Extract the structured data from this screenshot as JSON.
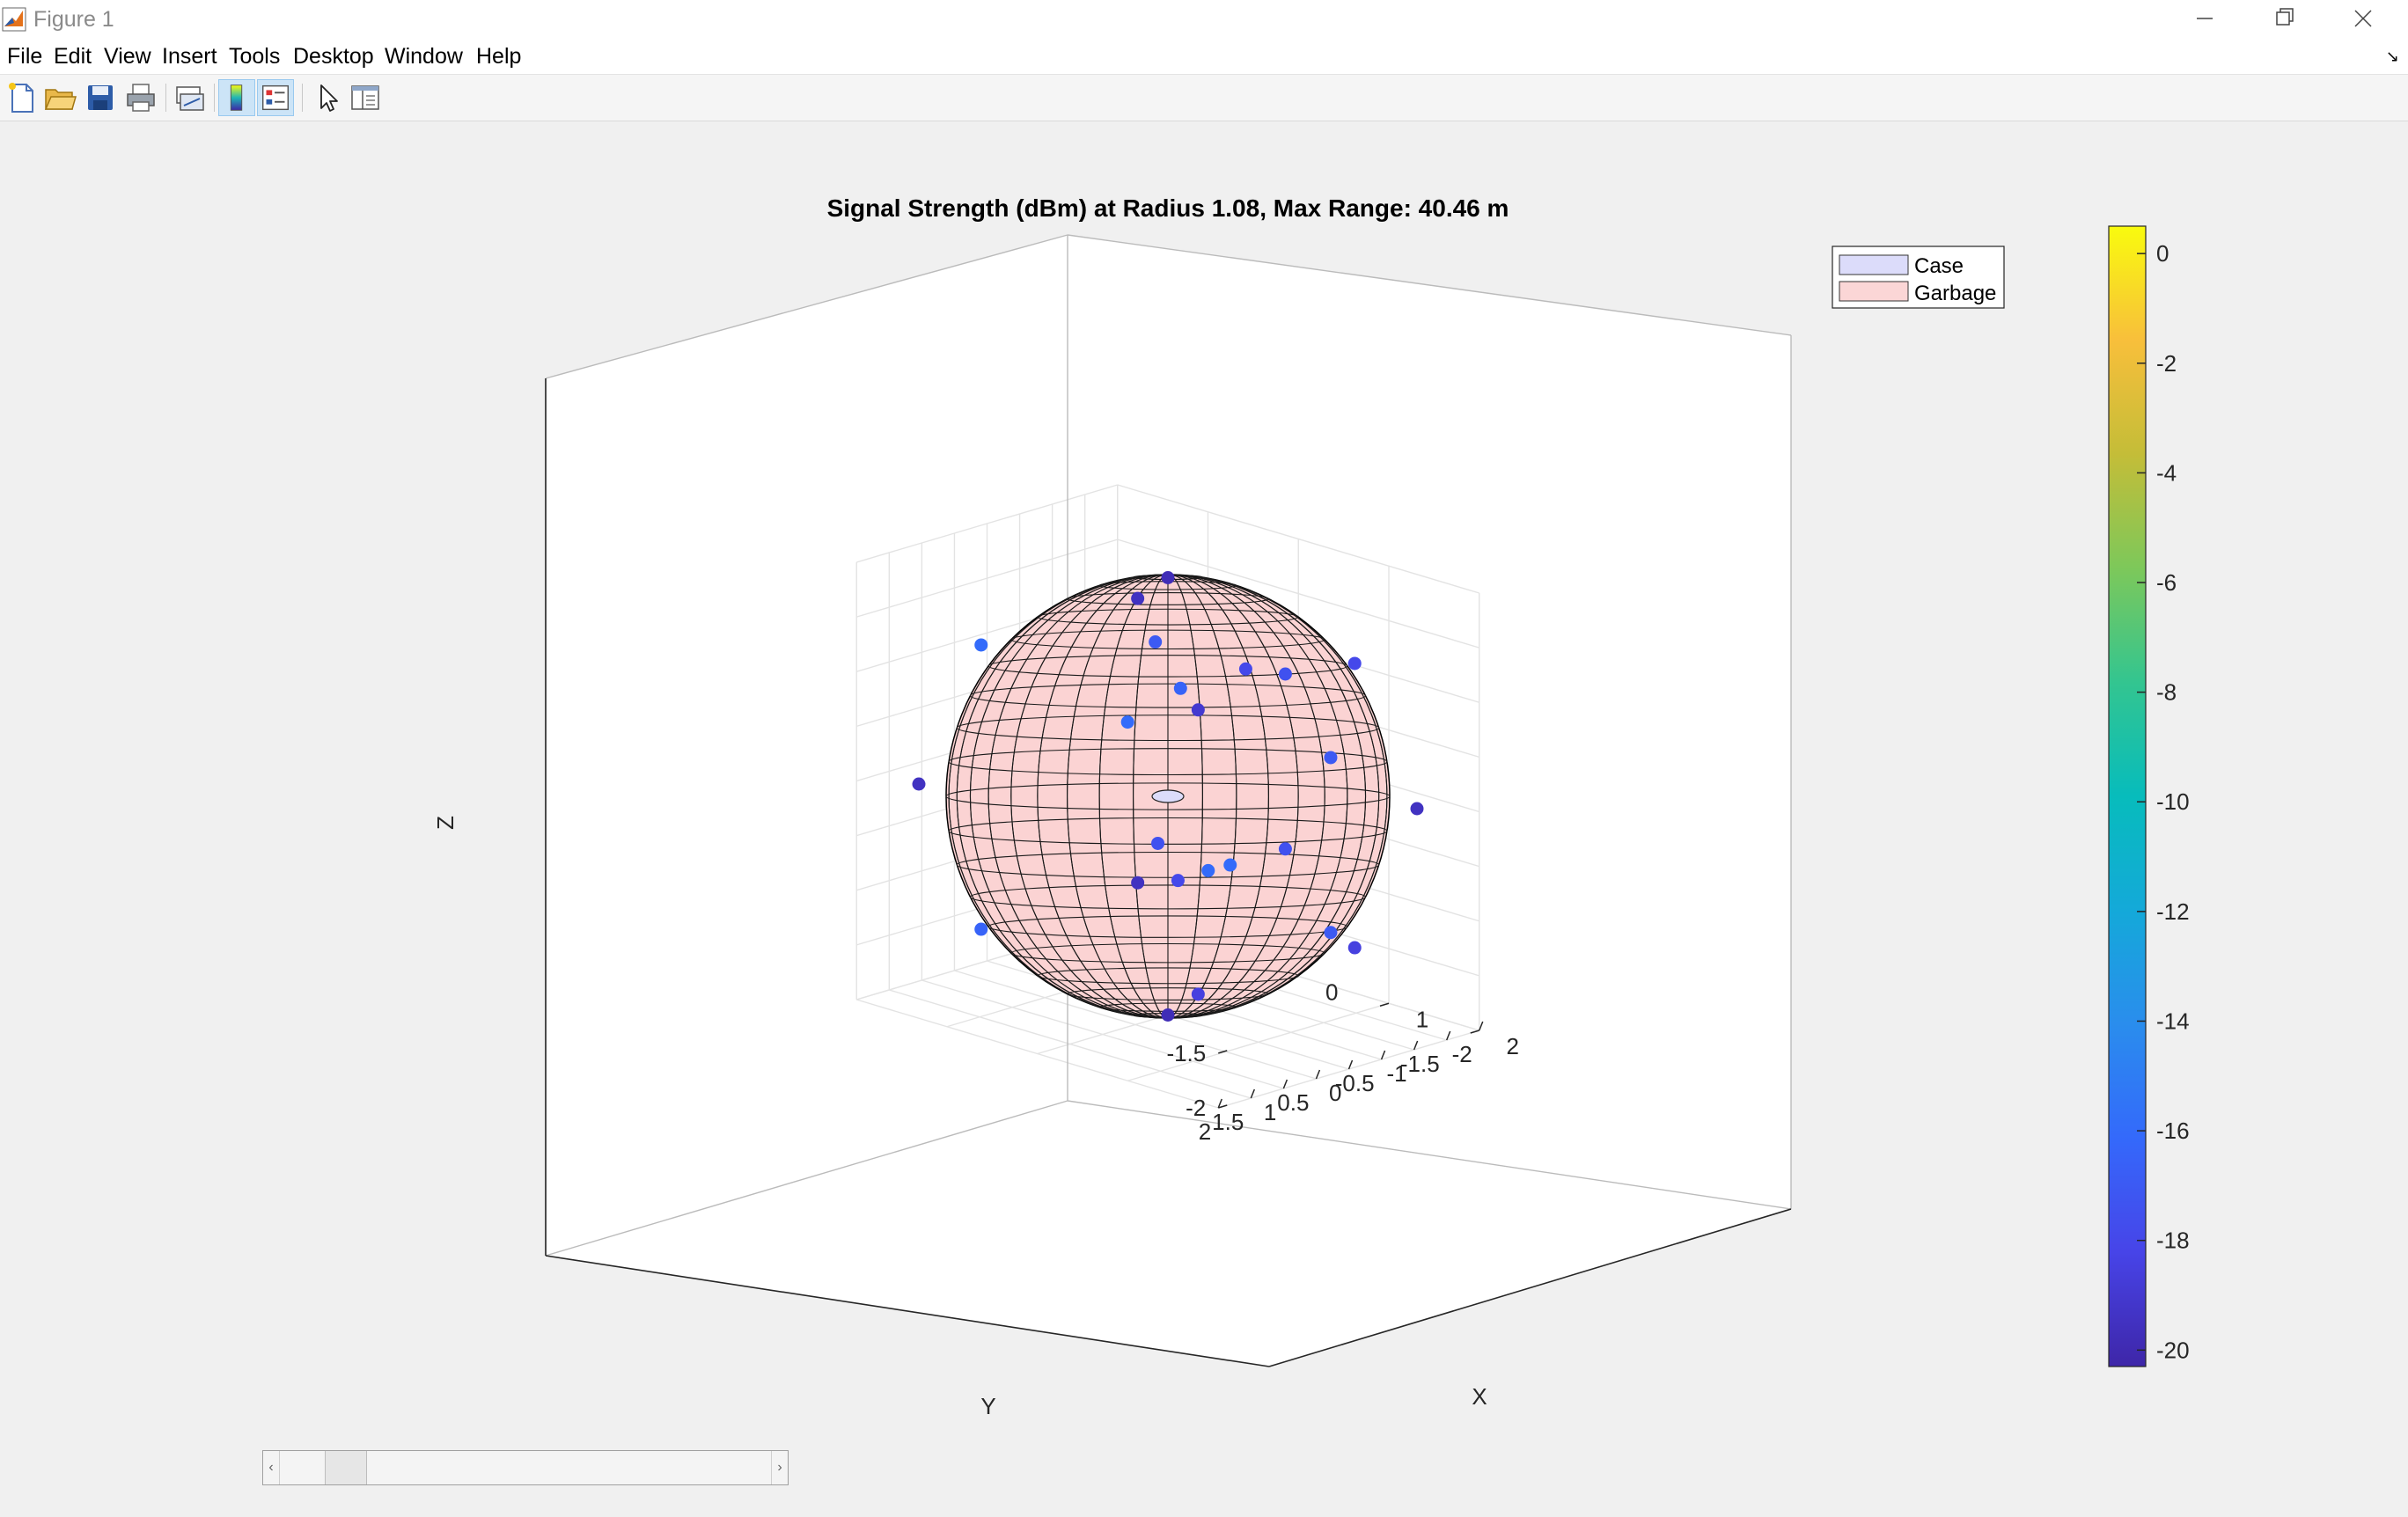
{
  "window": {
    "title": "Figure 1",
    "icons": {
      "app": "matlab-icon",
      "minimize": "minimize-icon",
      "maximize": "restore-icon",
      "close": "close-icon"
    }
  },
  "menu": {
    "items": [
      "File",
      "Edit",
      "View",
      "Insert",
      "Tools",
      "Desktop",
      "Window",
      "Help"
    ]
  },
  "toolbar": {
    "buttons": [
      {
        "name": "new-figure",
        "icon": "new-file-icon"
      },
      {
        "name": "open-file",
        "icon": "folder-open-icon"
      },
      {
        "name": "save-figure",
        "icon": "save-icon"
      },
      {
        "name": "print-figure",
        "icon": "printer-icon"
      },
      {
        "name": "link-plot",
        "icon": "link-plot-icon"
      },
      {
        "name": "insert-colorbar",
        "icon": "colorbar-icon",
        "pressed": true
      },
      {
        "name": "insert-legend",
        "icon": "legend-icon",
        "pressed": true
      },
      {
        "name": "edit-plot",
        "icon": "pointer-arrow-icon"
      },
      {
        "name": "plot-tools",
        "icon": "panel-toggle-icon"
      }
    ]
  },
  "chart_data": {
    "type": "scatter",
    "title": "Signal Strength (dBm) at Radius 1.08, Max Range: 40.46 m",
    "xlabel": "X",
    "ylabel": "Y",
    "zlabel": "Z",
    "xlim": [
      -2,
      2
    ],
    "ylim": [
      -2,
      2
    ],
    "zlim": [
      -2,
      2
    ],
    "x_ticks": [
      "-2",
      "-1",
      "0",
      "1",
      "2"
    ],
    "y_ticks": [
      "2",
      "1.5",
      "1",
      "0.5",
      "0",
      "-0.5",
      "-1",
      "-1.5",
      "-2"
    ],
    "z_ticks": [
      "2",
      "1.5",
      "1",
      "0.5",
      "0",
      "-0.5",
      "-1",
      "-1.5",
      "-2"
    ],
    "grid": true,
    "legend": {
      "placement": "top-right",
      "entries": [
        {
          "label": "Case",
          "color": "#dcdcfa"
        },
        {
          "label": "Garbage",
          "color": "#fbd6d6"
        }
      ]
    },
    "sphere": {
      "radius": 1.08,
      "center": [
        0,
        0,
        0
      ],
      "face_color": "#fbd3d3",
      "edge_color": "#000000"
    },
    "colorbar": {
      "min": -20.3,
      "max": 0.5,
      "ticks": [
        "0",
        "-2",
        "-4",
        "-6",
        "-8",
        "-10",
        "-12",
        "-14",
        "-16",
        "-18",
        "-20"
      ],
      "colormap": "parula"
    },
    "points": [
      {
        "x": 0,
        "y": 0,
        "z": 2,
        "c": -19.8
      },
      {
        "x": 0,
        "y": 0,
        "z": -2,
        "c": -19.8
      },
      {
        "x": 1.8,
        "y": 0,
        "z": 0.8,
        "c": -17
      },
      {
        "x": -1.8,
        "y": 0,
        "z": 0.8,
        "c": -16.5
      },
      {
        "x": 1.8,
        "y": 0,
        "z": -0.8,
        "c": -17
      },
      {
        "x": -1.8,
        "y": 0,
        "z": -0.8,
        "c": -16.5
      },
      {
        "x": 0,
        "y": 1.8,
        "z": 0.8,
        "c": -17.5
      },
      {
        "x": 0,
        "y": -1.8,
        "z": 0.8,
        "c": -17.5
      },
      {
        "x": 0,
        "y": 1.8,
        "z": -0.8,
        "c": -17.5
      },
      {
        "x": 0,
        "y": -1.8,
        "z": -0.8,
        "c": -17.5
      },
      {
        "x": 1.2,
        "y": 1.2,
        "z": 1.3,
        "c": -19
      },
      {
        "x": -1.2,
        "y": 1.2,
        "z": 1.3,
        "c": -16
      },
      {
        "x": 1.2,
        "y": -1.2,
        "z": 1.3,
        "c": -18
      },
      {
        "x": -1.2,
        "y": -1.2,
        "z": 1.3,
        "c": -19.5
      },
      {
        "x": 1.2,
        "y": 1.2,
        "z": -1.3,
        "c": -18.5
      },
      {
        "x": -1.2,
        "y": 1.2,
        "z": -1.3,
        "c": -16.5
      },
      {
        "x": 1.2,
        "y": -1.2,
        "z": -1.3,
        "c": -18.5
      },
      {
        "x": -1.2,
        "y": -1.2,
        "z": -1.3,
        "c": -19.5
      },
      {
        "x": 1.6,
        "y": 1.6,
        "z": 0,
        "c": -16
      },
      {
        "x": -1.6,
        "y": -1.6,
        "z": 0,
        "c": -16
      },
      {
        "x": 1.6,
        "y": -1.6,
        "z": 0,
        "c": -19.5
      },
      {
        "x": -1.6,
        "y": 1.6,
        "z": 0,
        "c": -19.5
      },
      {
        "x": 0.5,
        "y": 0.5,
        "z": 1.2,
        "c": -16.5
      },
      {
        "x": -0.5,
        "y": -0.5,
        "z": 1.2,
        "c": -17
      },
      {
        "x": 0.5,
        "y": -0.5,
        "z": 1.2,
        "c": -18
      },
      {
        "x": -0.5,
        "y": 0.5,
        "z": 1.2,
        "c": -17.5
      },
      {
        "x": 0.4,
        "y": -0.4,
        "z": -0.6,
        "c": -16
      },
      {
        "x": -0.4,
        "y": 0.4,
        "z": -0.6,
        "c": -16.5
      },
      {
        "x": 0.4,
        "y": 0.4,
        "z": -0.6,
        "c": -18
      },
      {
        "x": -0.4,
        "y": -0.4,
        "z": -0.6,
        "c": -17.5
      }
    ]
  }
}
